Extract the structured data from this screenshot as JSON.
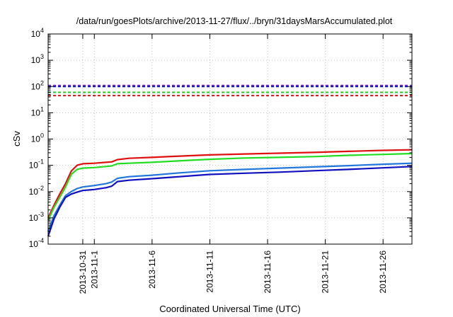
{
  "chart_data": {
    "type": "line",
    "title": "/data/run/goesPlots/archive/2013-11-27/flux/../bryn/31daysMarsAccumulated.plot",
    "xlabel": "Coordinated Universal Time (UTC)",
    "ylabel": "cSv",
    "yscale": "log",
    "ylim": [
      0.0001,
      10000
    ],
    "xlim": [
      "2013-10-28T00:00",
      "2013-11-28T12:00"
    ],
    "grid": true,
    "legend": "none",
    "y_ticks": [
      {
        "value": 0.0001,
        "base": "10",
        "exp": "-4"
      },
      {
        "value": 0.001,
        "base": "10",
        "exp": "-3"
      },
      {
        "value": 0.01,
        "base": "10",
        "exp": "-2"
      },
      {
        "value": 0.1,
        "base": "10",
        "exp": "-1"
      },
      {
        "value": 1,
        "base": "10",
        "exp": "0"
      },
      {
        "value": 10,
        "base": "10",
        "exp": "1"
      },
      {
        "value": 100,
        "base": "10",
        "exp": "2"
      },
      {
        "value": 1000,
        "base": "10",
        "exp": "3"
      },
      {
        "value": 10000,
        "base": "10",
        "exp": "4"
      }
    ],
    "x_ticks": [
      {
        "value": "2013-10-31",
        "label": "2013-10-31"
      },
      {
        "value": "2013-11-01",
        "label": "2013-11-1"
      },
      {
        "value": "2013-11-06",
        "label": "2013-11-6"
      },
      {
        "value": "2013-11-11",
        "label": "2013-11-11"
      },
      {
        "value": "2013-11-16",
        "label": "2013-11-16"
      },
      {
        "value": "2013-11-21",
        "label": "2013-11-21"
      },
      {
        "value": "2013-11-26",
        "label": "2013-11-26"
      }
    ],
    "reference_lines": [
      {
        "y": 110,
        "color": "#8a2be2",
        "style": "dashed"
      },
      {
        "y": 100,
        "color": "#1010c0",
        "style": "dashed"
      },
      {
        "y": 60,
        "color": "#22cc22",
        "style": "dashed"
      },
      {
        "y": 45,
        "color": "#e01010",
        "style": "dashed"
      }
    ],
    "series": [
      {
        "color": "#e01010",
        "x": [
          "2013-10-28T00:00",
          "2013-10-28T12:00",
          "2013-10-29T00:00",
          "2013-10-29T12:00",
          "2013-10-30T00:00",
          "2013-10-30T12:00",
          "2013-10-31T00:00",
          "2013-11-01T00:00",
          "2013-11-02T00:00",
          "2013-11-02T12:00",
          "2013-11-03T00:00",
          "2013-11-04T00:00",
          "2013-11-06T00:00",
          "2013-11-08T00:00",
          "2013-11-11T00:00",
          "2013-11-14T00:00",
          "2013-11-17T00:00",
          "2013-11-20T00:00",
          "2013-11-23T00:00",
          "2013-11-26T00:00",
          "2013-11-28T12:00"
        ],
        "y": [
          0.001,
          0.003,
          0.008,
          0.02,
          0.06,
          0.1,
          0.115,
          0.12,
          0.13,
          0.135,
          0.165,
          0.185,
          0.2,
          0.22,
          0.25,
          0.27,
          0.29,
          0.31,
          0.34,
          0.37,
          0.39
        ]
      },
      {
        "color": "#22dd22",
        "x": [
          "2013-10-28T00:00",
          "2013-10-28T12:00",
          "2013-10-29T00:00",
          "2013-10-29T12:00",
          "2013-10-30T00:00",
          "2013-10-30T12:00",
          "2013-10-31T00:00",
          "2013-11-01T00:00",
          "2013-11-02T00:00",
          "2013-11-02T12:00",
          "2013-11-03T00:00",
          "2013-11-04T00:00",
          "2013-11-06T00:00",
          "2013-11-08T00:00",
          "2013-11-11T00:00",
          "2013-11-14T00:00",
          "2013-11-17T00:00",
          "2013-11-20T00:00",
          "2013-11-23T00:00",
          "2013-11-26T00:00",
          "2013-11-28T12:00"
        ],
        "y": [
          0.0008,
          0.0025,
          0.006,
          0.015,
          0.045,
          0.07,
          0.078,
          0.082,
          0.09,
          0.095,
          0.115,
          0.12,
          0.13,
          0.145,
          0.17,
          0.19,
          0.2,
          0.215,
          0.24,
          0.26,
          0.28
        ]
      },
      {
        "color": "#2277dd",
        "x": [
          "2013-10-28T00:00",
          "2013-10-28T12:00",
          "2013-10-29T00:00",
          "2013-10-29T12:00",
          "2013-10-30T00:00",
          "2013-10-30T12:00",
          "2013-10-31T00:00",
          "2013-11-01T00:00",
          "2013-11-02T00:00",
          "2013-11-02T12:00",
          "2013-11-03T00:00",
          "2013-11-04T00:00",
          "2013-11-06T00:00",
          "2013-11-08T00:00",
          "2013-11-11T00:00",
          "2013-11-14T00:00",
          "2013-11-17T00:00",
          "2013-11-20T00:00",
          "2013-11-23T00:00",
          "2013-11-26T00:00",
          "2013-11-28T12:00"
        ],
        "y": [
          0.0003,
          0.0012,
          0.003,
          0.007,
          0.01,
          0.013,
          0.015,
          0.017,
          0.02,
          0.023,
          0.032,
          0.037,
          0.042,
          0.05,
          0.062,
          0.07,
          0.078,
          0.087,
          0.097,
          0.11,
          0.12
        ]
      },
      {
        "color": "#1010c0",
        "x": [
          "2013-10-28T00:00",
          "2013-10-28T12:00",
          "2013-10-29T00:00",
          "2013-10-29T12:00",
          "2013-10-30T00:00",
          "2013-10-30T12:00",
          "2013-10-31T00:00",
          "2013-11-01T00:00",
          "2013-11-02T00:00",
          "2013-11-02T12:00",
          "2013-11-03T00:00",
          "2013-11-04T00:00",
          "2013-11-06T00:00",
          "2013-11-08T00:00",
          "2013-11-11T00:00",
          "2013-11-14T00:00",
          "2013-11-17T00:00",
          "2013-11-20T00:00",
          "2013-11-23T00:00",
          "2013-11-26T00:00",
          "2013-11-28T12:00"
        ],
        "y": [
          0.0002,
          0.0009,
          0.0025,
          0.006,
          0.008,
          0.0095,
          0.011,
          0.012,
          0.014,
          0.016,
          0.024,
          0.027,
          0.031,
          0.036,
          0.045,
          0.05,
          0.055,
          0.062,
          0.07,
          0.08,
          0.09
        ]
      }
    ]
  }
}
